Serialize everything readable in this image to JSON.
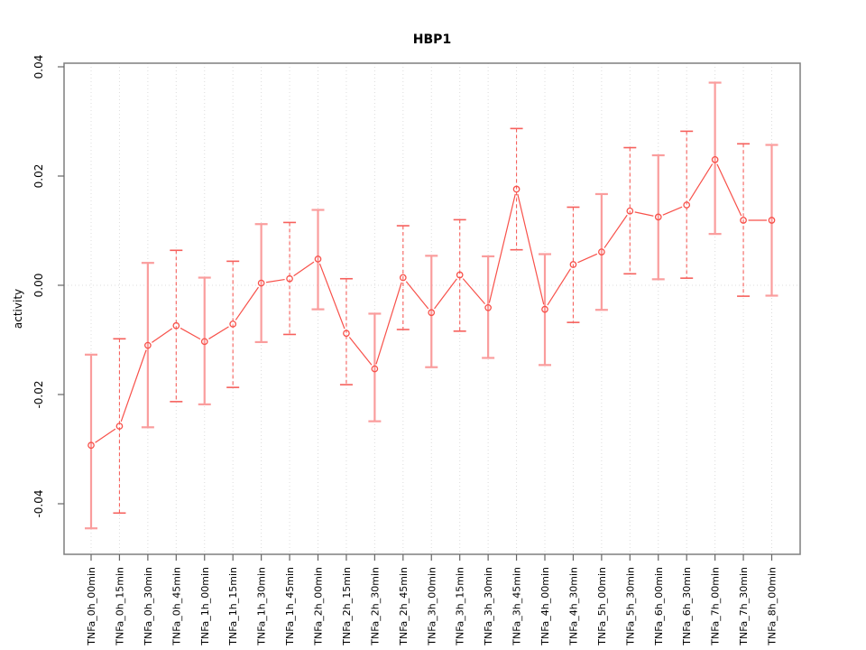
{
  "chart_data": {
    "type": "line",
    "title": "HBP1",
    "xlabel": "",
    "ylabel": "activity",
    "legend": "none",
    "grid": "vertical dotted gridlines at every category; dotted horizontal line at y=0",
    "marker": "open-circle",
    "error_bars": true,
    "error_bar_styles_alternate": [
      "solid-pink-thick",
      "dashed-red-thin"
    ],
    "categories": [
      "TNFa_0h_00min",
      "TNFa_0h_15min",
      "TNFa_0h_30min",
      "TNFa_0h_45min",
      "TNFa_1h_00min",
      "TNFa_1h_15min",
      "TNFa_1h_30min",
      "TNFa_1h_45min",
      "TNFa_2h_00min",
      "TNFa_2h_15min",
      "TNFa_2h_30min",
      "TNFa_2h_45min",
      "TNFa_3h_00min",
      "TNFa_3h_15min",
      "TNFa_3h_30min",
      "TNFa_3h_45min",
      "TNFa_4h_00min",
      "TNFa_4h_30min",
      "TNFa_5h_00min",
      "TNFa_5h_30min",
      "TNFa_6h_00min",
      "TNFa_6h_30min",
      "TNFa_7h_00min",
      "TNFa_7h_30min",
      "TNFa_8h_00min"
    ],
    "series": [
      {
        "name": "activity",
        "values": [
          -0.0293,
          -0.0258,
          -0.011,
          -0.0074,
          -0.0103,
          -0.0071,
          0.0004,
          0.0012,
          0.0048,
          -0.0088,
          -0.0153,
          0.0014,
          -0.005,
          0.0019,
          -0.0041,
          0.0176,
          -0.0044,
          0.0038,
          0.0061,
          0.0136,
          0.0125,
          0.0147,
          0.023,
          0.0119,
          0.0119
        ],
        "error_low": [
          -0.0445,
          -0.0417,
          -0.026,
          -0.0213,
          -0.0218,
          -0.0187,
          -0.0104,
          -0.009,
          -0.0044,
          -0.0182,
          -0.0249,
          -0.0081,
          -0.015,
          -0.0084,
          -0.0133,
          0.0065,
          -0.0146,
          -0.0068,
          -0.0045,
          0.0021,
          0.0011,
          0.0013,
          0.0094,
          -0.002,
          -0.0019
        ],
        "error_high": [
          -0.0127,
          -0.0098,
          0.0041,
          0.0064,
          0.0014,
          0.0044,
          0.0112,
          0.0115,
          0.0138,
          0.0012,
          -0.0052,
          0.0109,
          0.0054,
          0.012,
          0.0053,
          0.0287,
          0.0057,
          0.0143,
          0.0167,
          0.0252,
          0.0238,
          0.0282,
          0.0371,
          0.0259,
          0.0257
        ]
      }
    ],
    "yticks": [
      0.04,
      0.02,
      0.0,
      -0.02,
      -0.04
    ],
    "ytick_labels": [
      "0.04",
      "0.02",
      "0.00",
      "-0.02",
      "-0.04"
    ],
    "ylim": [
      -0.0493,
      0.0407
    ],
    "colors": {
      "line": "#f8514a",
      "point": "#f8514a",
      "error_bar_solid": "#fa9d9d",
      "error_bar_dashed": "#f6605c",
      "grid": "#dcdcdc",
      "box": "#7f7f7f",
      "tick": "#666666",
      "text": "#000000"
    }
  }
}
